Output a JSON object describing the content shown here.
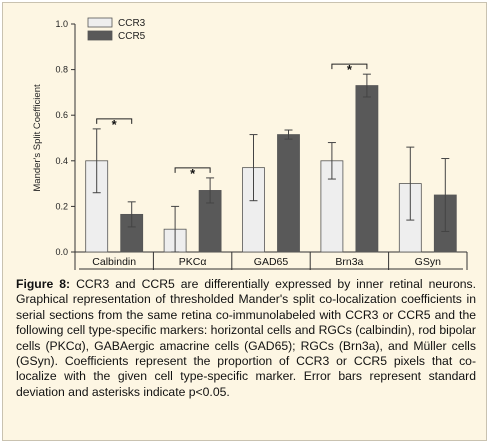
{
  "chart_data": {
    "type": "bar",
    "ylabel": "Mander's Split Coefficient",
    "ylim": [
      0,
      1.0
    ],
    "yticks": [
      "0.0",
      "0.2",
      "0.4",
      "0.6",
      "0.8",
      "1.0"
    ],
    "categories": [
      "Calbindin",
      "PKCα",
      "GAD65",
      "Brn3a",
      "GSyn"
    ],
    "series": [
      {
        "name": "CCR3",
        "color": "#eeeeee",
        "values": [
          0.4,
          0.1,
          0.37,
          0.4,
          0.3
        ],
        "errors": [
          0.14,
          0.1,
          0.145,
          0.08,
          0.16
        ]
      },
      {
        "name": "CCR5",
        "color": "#595959",
        "values": [
          0.165,
          0.27,
          0.515,
          0.73,
          0.25
        ],
        "errors": [
          0.055,
          0.055,
          0.02,
          0.05,
          0.16
        ]
      }
    ],
    "significance": [
      {
        "category": "Calbindin",
        "label": "*"
      },
      {
        "category": "PKCα",
        "label": "*"
      },
      {
        "category": "Brn3a",
        "label": "*"
      }
    ],
    "legend": "top-left",
    "grid": false
  },
  "caption": {
    "label": "Figure 8:",
    "text": " CCR3 and CCR5 are differentially expressed by inner retinal neurons. Graphical representation of thresholded Mander's split co-localization coefficients in serial sections from the same retina co-immunolabeled with CCR3 or CCR5 and the following cell type-specific markers: horizontal cells and RGCs (calbindin), rod bipolar cells (PKCα), GABAergic amacrine cells (GAD65); RGCs (Brn3a), and Müller cells (GSyn). Coefficients represent the proportion of CCR3 or CCR5 pixels that co-localize with the given cell type-specific marker. Error bars represent standard deviation and asterisks indicate p<0.05."
  }
}
